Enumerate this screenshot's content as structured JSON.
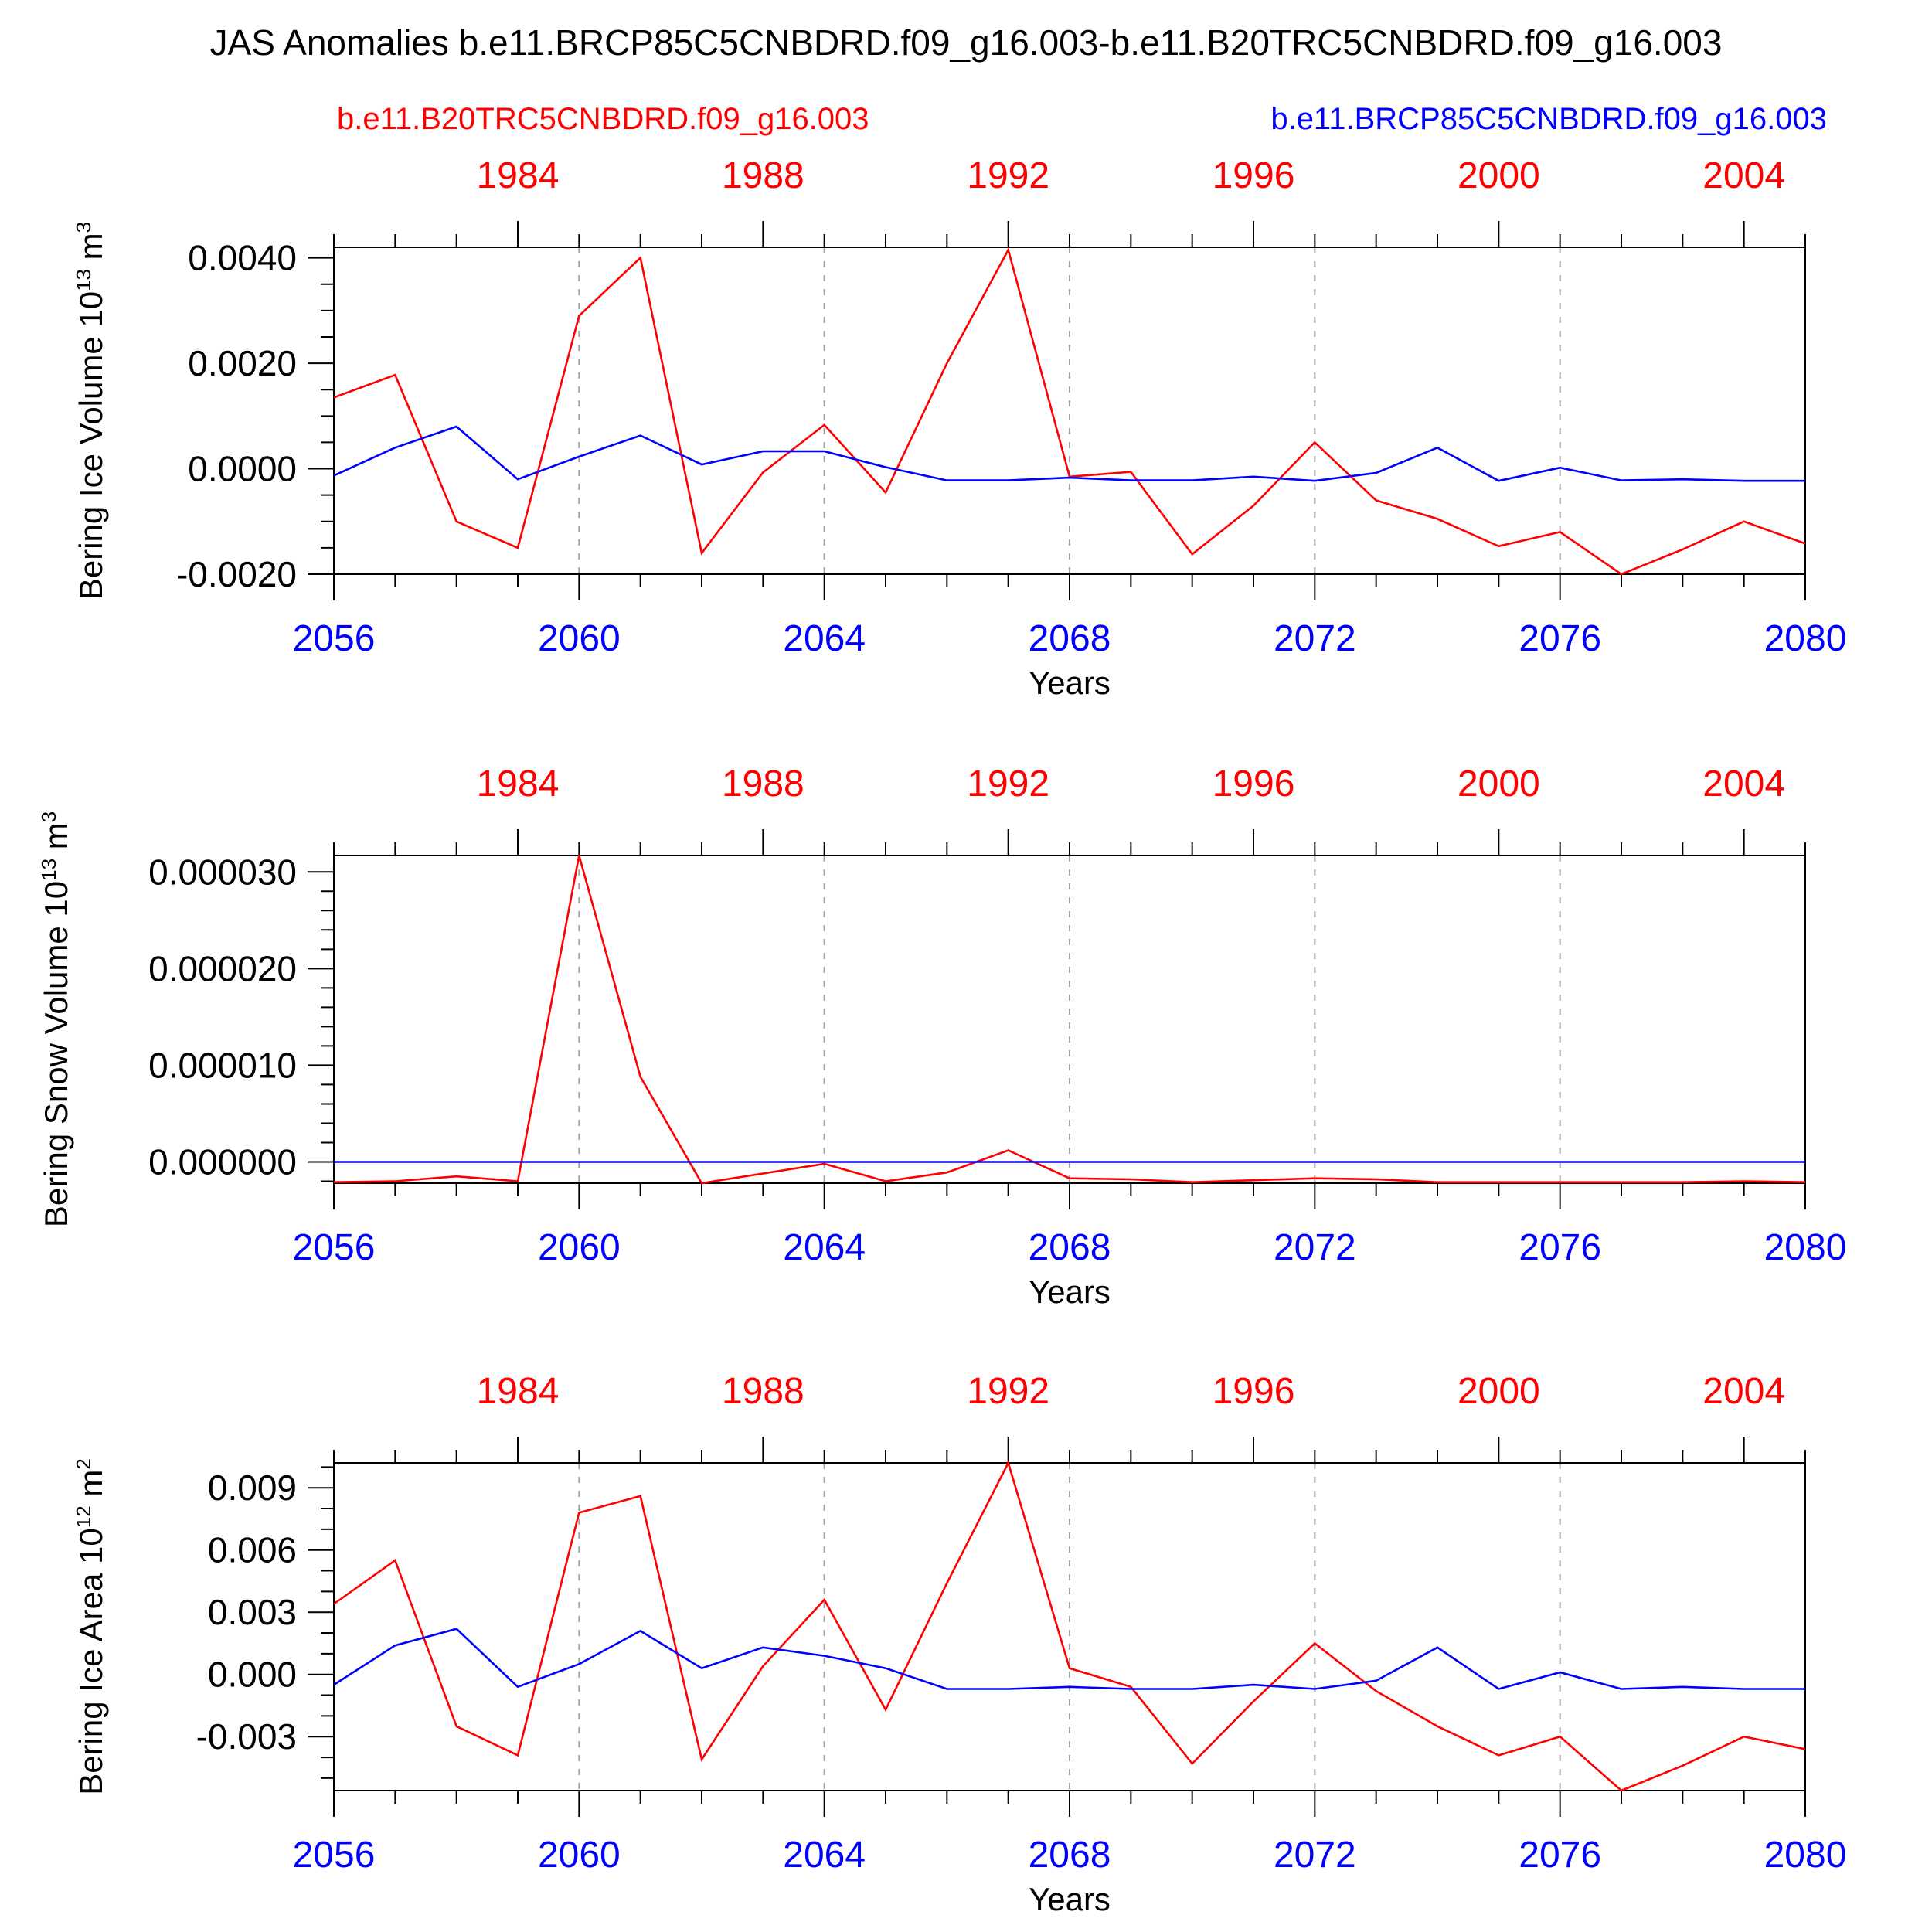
{
  "title": "JAS Anomalies b.e11.BRCP85C5CNBDRD.f09_g16.003-b.e11.B20TRC5CNBDRD.f09_g16.003",
  "legend": {
    "historical": "b.e11.B20TRC5CNBDRD.f09_g16.003",
    "future": "b.e11.BRCP85C5CNBDRD.f09_g16.003"
  },
  "colors": {
    "historical": "#ff0000",
    "future": "#0000ff",
    "axis": "#000000",
    "grid": "#a0a0a0"
  },
  "chart_data": [
    {
      "type": "line",
      "ylabel": "Bering Ice Volume 10",
      "ylabel_exp": "13",
      "ylabel_unit": "m",
      "ylabel_unit_exp": "3",
      "xlabel": "Years",
      "xlim": [
        2056,
        2080
      ],
      "ylim": [
        -0.002,
        0.0042
      ],
      "yticks": [
        -0.002,
        0.0,
        0.002,
        0.004
      ],
      "ytick_labels": [
        "-0.0020",
        "0.0000",
        "0.0020",
        "0.0040"
      ],
      "yminor_step": 0.0005,
      "xticks_bottom": [
        2056,
        2060,
        2064,
        2068,
        2072,
        2076,
        2080
      ],
      "xtick_labels_bottom": [
        "2056",
        "2060",
        "2064",
        "2068",
        "2072",
        "2076",
        "2080"
      ],
      "xticks_top": [
        1984,
        1988,
        1992,
        1996,
        2000,
        2004
      ],
      "xtick_labels_top": [
        "1984",
        "1988",
        "1992",
        "1996",
        "2000",
        "2004"
      ],
      "top_offset": 3,
      "x": [
        2056,
        2057,
        2058,
        2059,
        2060,
        2061,
        2062,
        2063,
        2064,
        2065,
        2066,
        2067,
        2068,
        2069,
        2070,
        2071,
        2072,
        2073,
        2074,
        2075,
        2076,
        2077,
        2078,
        2079,
        2080
      ],
      "series": [
        {
          "name": "b.e11.B20TRC5CNBDRD.f09_g16.003",
          "color": "#ff0000",
          "values": [
            0.00135,
            0.00178,
            -0.001,
            -0.0015,
            0.0029,
            0.004,
            -0.0016,
            -7e-05,
            0.00083,
            -0.00045,
            0.002,
            0.00415,
            -0.00015,
            -6e-05,
            -0.00162,
            -0.0007,
            0.0005,
            -0.0006,
            -0.00095,
            -0.00147,
            -0.0012,
            -0.002,
            -0.00153,
            -0.001,
            -0.00142
          ]
        },
        {
          "name": "b.e11.BRCP85C5CNBDRD.f09_g16.003",
          "color": "#0000ff",
          "values": [
            -0.00013,
            0.0004,
            0.0008,
            -0.0002,
            0.00023,
            0.00063,
            8e-05,
            0.00033,
            0.00033,
            3e-05,
            -0.00022,
            -0.00022,
            -0.00017,
            -0.00022,
            -0.00022,
            -0.00015,
            -0.00023,
            -8e-05,
            0.0004,
            -0.00023,
            2e-05,
            -0.00022,
            -0.0002,
            -0.00023,
            -0.00023
          ]
        }
      ]
    },
    {
      "type": "line",
      "ylabel": "Bering Snow Volume 10",
      "ylabel_exp": "13",
      "ylabel_unit": "m",
      "ylabel_unit_exp": "3",
      "xlabel": "Years",
      "xlim": [
        2056,
        2080
      ],
      "ylim": [
        -2.2e-06,
        3.17e-05
      ],
      "yticks": [
        0.0,
        1e-05,
        2e-05,
        3e-05
      ],
      "ytick_labels": [
        "0.000000",
        "0.000010",
        "0.000020",
        "0.000030"
      ],
      "yminor_step": 2e-06,
      "xticks_bottom": [
        2056,
        2060,
        2064,
        2068,
        2072,
        2076,
        2080
      ],
      "xtick_labels_bottom": [
        "2056",
        "2060",
        "2064",
        "2068",
        "2072",
        "2076",
        "2080"
      ],
      "xticks_top": [
        1984,
        1988,
        1992,
        1996,
        2000,
        2004
      ],
      "xtick_labels_top": [
        "1984",
        "1988",
        "1992",
        "1996",
        "2000",
        "2004"
      ],
      "top_offset": 3,
      "x": [
        2056,
        2057,
        2058,
        2059,
        2060,
        2061,
        2062,
        2063,
        2064,
        2065,
        2066,
        2067,
        2068,
        2069,
        2070,
        2071,
        2072,
        2073,
        2074,
        2075,
        2076,
        2077,
        2078,
        2079,
        2080
      ],
      "series": [
        {
          "name": "b.e11.B20TRC5CNBDRD.f09_g16.003",
          "color": "#ff0000",
          "values": [
            -2.1e-06,
            -2e-06,
            -1.5e-06,
            -2e-06,
            3.17e-05,
            8.8e-06,
            -2.2e-06,
            -1.2e-06,
            -2e-07,
            -2e-06,
            -1.1e-06,
            1.2e-06,
            -1.7e-06,
            -1.8e-06,
            -2.1e-06,
            -1.9e-06,
            -1.7e-06,
            -1.8e-06,
            -2.1e-06,
            -2.1e-06,
            -2.1e-06,
            -2.1e-06,
            -2.1e-06,
            -2e-06,
            -2.1e-06
          ]
        },
        {
          "name": "b.e11.BRCP85C5CNBDRD.f09_g16.003",
          "color": "#0000ff",
          "values": [
            0,
            0,
            0,
            0,
            0,
            0,
            0,
            0,
            0,
            0,
            0,
            0,
            0,
            0,
            0,
            0,
            0,
            0,
            0,
            0,
            0,
            0,
            0,
            0,
            0
          ]
        }
      ]
    },
    {
      "type": "line",
      "ylabel": "Bering Ice Area 10",
      "ylabel_exp": "12",
      "ylabel_unit": "m",
      "ylabel_unit_exp": "2",
      "xlabel": "Years",
      "xlim": [
        2056,
        2080
      ],
      "ylim": [
        -0.0056,
        0.0102
      ],
      "yticks": [
        -0.003,
        0.0,
        0.003,
        0.006,
        0.009
      ],
      "ytick_labels": [
        "-0.003",
        "0.000",
        "0.003",
        "0.006",
        "0.009"
      ],
      "yminor_step": 0.001,
      "xticks_bottom": [
        2056,
        2060,
        2064,
        2068,
        2072,
        2076,
        2080
      ],
      "xtick_labels_bottom": [
        "2056",
        "2060",
        "2064",
        "2068",
        "2072",
        "2076",
        "2080"
      ],
      "xticks_top": [
        1984,
        1988,
        1992,
        1996,
        2000,
        2004
      ],
      "xtick_labels_top": [
        "1984",
        "1988",
        "1992",
        "1996",
        "2000",
        "2004"
      ],
      "top_offset": 3,
      "x": [
        2056,
        2057,
        2058,
        2059,
        2060,
        2061,
        2062,
        2063,
        2064,
        2065,
        2066,
        2067,
        2068,
        2069,
        2070,
        2071,
        2072,
        2073,
        2074,
        2075,
        2076,
        2077,
        2078,
        2079,
        2080
      ],
      "series": [
        {
          "name": "b.e11.B20TRC5CNBDRD.f09_g16.003",
          "color": "#ff0000",
          "values": [
            0.0034,
            0.0055,
            -0.0025,
            -0.0039,
            0.0078,
            0.0086,
            -0.0041,
            0.0004,
            0.0036,
            -0.0017,
            0.0044,
            0.0102,
            0.0003,
            -0.0006,
            -0.0043,
            -0.0013,
            0.0015,
            -0.0008,
            -0.0025,
            -0.0039,
            -0.003,
            -0.0056,
            -0.0044,
            -0.003,
            -0.0036
          ]
        },
        {
          "name": "b.e11.BRCP85C5CNBDRD.f09_g16.003",
          "color": "#0000ff",
          "values": [
            -0.0005,
            0.0014,
            0.0022,
            -0.0006,
            0.0005,
            0.0021,
            0.0003,
            0.0013,
            0.0009,
            0.0003,
            -0.0007,
            -0.0007,
            -0.0006,
            -0.0007,
            -0.0007,
            -0.0005,
            -0.0007,
            -0.0003,
            0.0013,
            -0.0007,
            0.0001,
            -0.0007,
            -0.0006,
            -0.0007,
            -0.0007
          ]
        }
      ]
    }
  ]
}
